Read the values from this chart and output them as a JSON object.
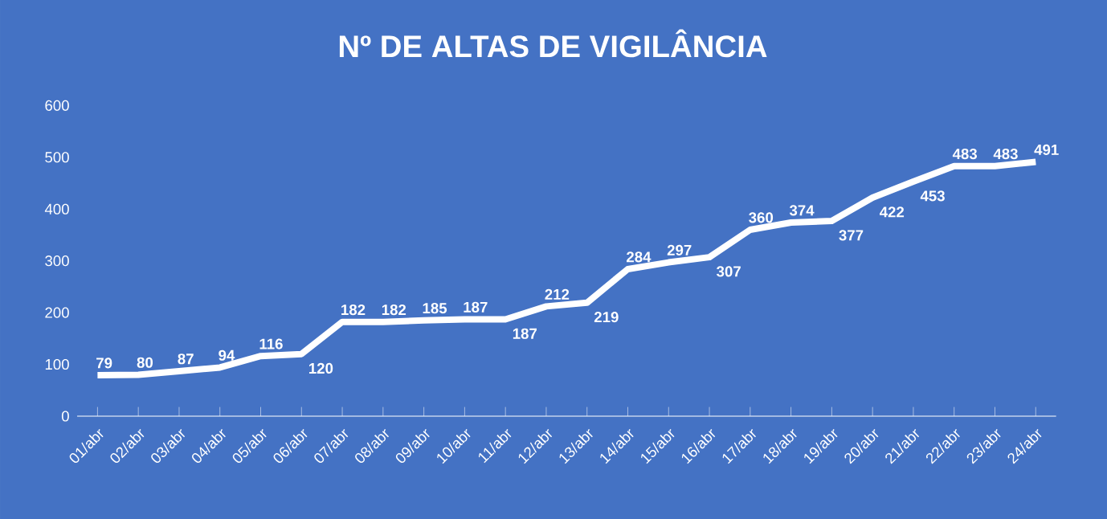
{
  "chart_data": {
    "type": "line",
    "title": "Nº DE ALTAS DE VIGILÂNCIA",
    "categories": [
      "01/abr",
      "02/abr",
      "03/abr",
      "04/abr",
      "05/abr",
      "06/abr",
      "07/abr",
      "08/abr",
      "09/abr",
      "10/abr",
      "11/abr",
      "12/abr",
      "13/abr",
      "14/abr",
      "15/abr",
      "16/abr",
      "17/abr",
      "18/abr",
      "19/abr",
      "20/abr",
      "21/abr",
      "22/abr",
      "23/abr",
      "24/abr"
    ],
    "values": [
      79,
      80,
      87,
      94,
      116,
      120,
      182,
      182,
      185,
      187,
      187,
      212,
      219,
      284,
      297,
      307,
      360,
      374,
      377,
      422,
      453,
      483,
      483,
      491
    ],
    "color": "#ffffff",
    "ylim": [
      0,
      600
    ],
    "yticks": [
      0,
      100,
      200,
      300,
      400,
      500,
      600
    ],
    "grid": false,
    "data_labels": true,
    "marker": "none",
    "line_style": "solid"
  }
}
